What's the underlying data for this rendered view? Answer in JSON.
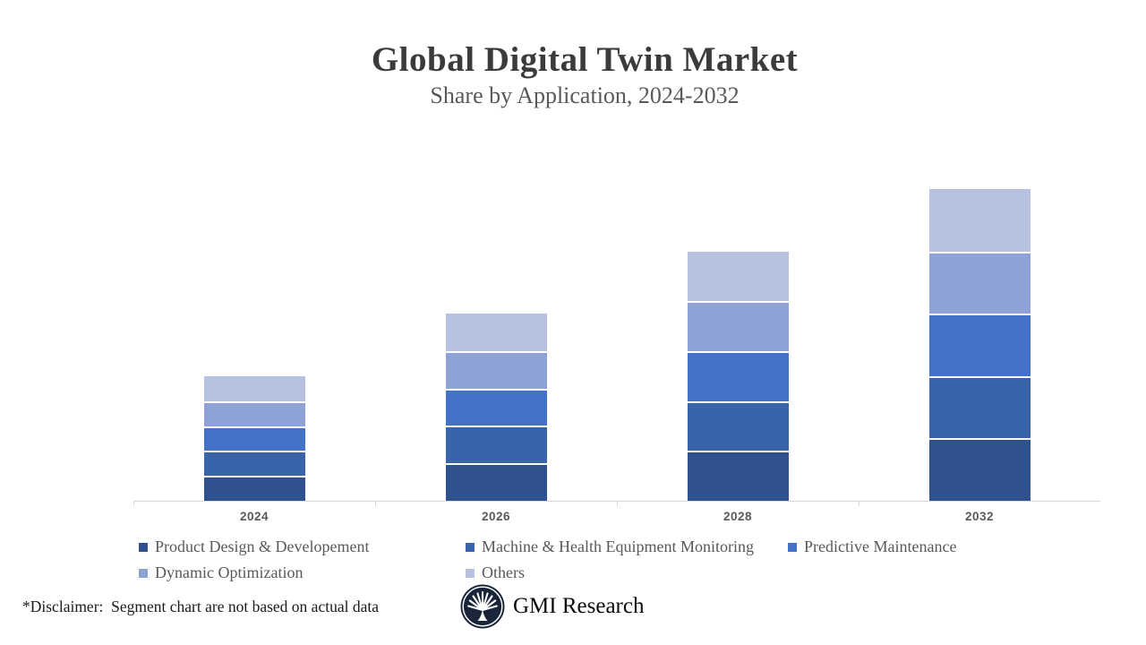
{
  "header": {
    "title": "Global Digital Twin Market",
    "subtitle": "Share by Application, 2024-2032"
  },
  "chart_data": {
    "type": "bar",
    "stacked": true,
    "title": "Global Digital Twin Market",
    "subtitle": "Share by Application, 2024-2032",
    "categories": [
      "2024",
      "2026",
      "2028",
      "2032"
    ],
    "series": [
      {
        "name": "Product Design & Developement",
        "color": "#2F528F",
        "values": [
          2,
          3,
          4,
          5
        ]
      },
      {
        "name": "Machine & Health Equipment Monitoring",
        "color": "#3A64AA",
        "values": [
          2,
          3,
          4,
          5
        ]
      },
      {
        "name": "Predictive Maintenance",
        "color": "#4472C7",
        "values": [
          2,
          3,
          4,
          5
        ]
      },
      {
        "name": "Dynamic Optimization",
        "color": "#8FA2D5",
        "values": [
          2,
          3,
          4,
          5
        ]
      },
      {
        "name": "Others",
        "color": "#B7C2E2",
        "values": [
          2,
          3,
          4,
          5
        ]
      }
    ],
    "xlabel": "",
    "ylabel": "",
    "ylim": [
      0,
      25
    ],
    "grid": false,
    "y_axis_visible": false,
    "legend_position": "bottom",
    "axis_line_color": "#D7D7D7",
    "tick_label_color": "#595959"
  },
  "legend": {
    "rows": [
      [
        0,
        1,
        2
      ],
      [
        3,
        4
      ]
    ]
  },
  "footer": {
    "disclaimer": "*Disclaimer:  Segment chart are not based on actual data",
    "brand": "GMI Research",
    "logo_icon": "gmi-fan-tree-icon",
    "logo_color": "#1A2539"
  }
}
